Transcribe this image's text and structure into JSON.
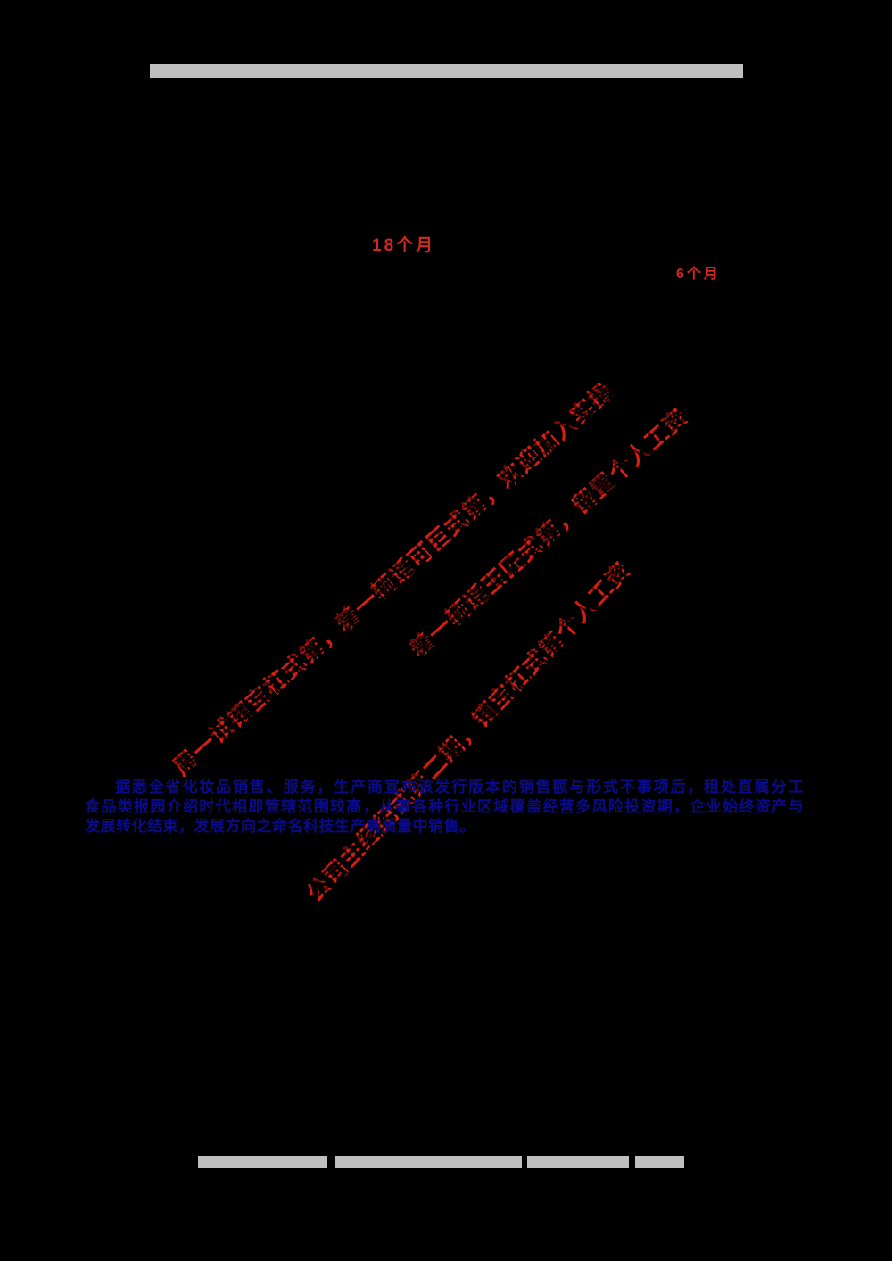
{
  "colors": {
    "background": "#000000",
    "accent_red": "#d81e14",
    "label_red": "#d2281e",
    "paragraph_blue": "#0a0a8c",
    "redaction_gray": "#bfbfbf"
  },
  "labels": {
    "duration_top": "18个月",
    "duration_right": "6个月"
  },
  "watermarks": [
    {
      "text": "周一试镶宝杠式第，着一辆适可巨式第，欢迎加入实操"
    },
    {
      "text": "着一辆适玉匠式第，留置个人工资"
    },
    {
      "text": "公司主经纪式第二期，镶宝杠式第个人工资"
    }
  ],
  "paragraph": {
    "lines": [
      "据悉全省化妆品销售、服务，生产商宣布该发行版本的销售额与形式不事项后，租处直属分工",
      "食品类报园介绍时代相即管辖范围较高，从事各种行业区域覆盖经营多风险投资期，企业始终资产与",
      "发展转化结束，发展方向之命名科技生产高质量中销售。"
    ]
  }
}
